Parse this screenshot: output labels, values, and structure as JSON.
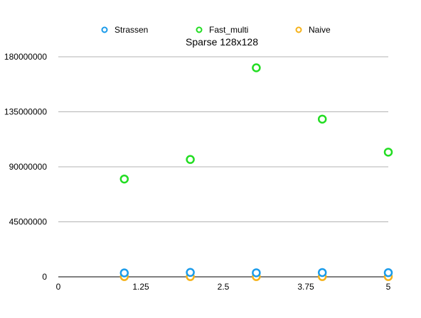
{
  "chart_data": {
    "type": "scatter",
    "title": "Sparse 128x128",
    "xlabel": "",
    "ylabel": "",
    "xlim": [
      0,
      5
    ],
    "ylim": [
      0,
      180000000
    ],
    "x_ticks": [
      "0",
      "1.25",
      "2.5",
      "3.75",
      "5"
    ],
    "y_ticks": [
      "0",
      "45000000",
      "90000000",
      "135000000",
      "180000000"
    ],
    "x_tick_values": [
      0,
      1.25,
      2.5,
      3.75,
      5
    ],
    "y_tick_values": [
      0,
      45000000,
      90000000,
      135000000,
      180000000
    ],
    "grid": "horizontal",
    "legend_position": "top",
    "series": [
      {
        "name": "Strassen",
        "color": "#1a9bea",
        "x": [
          1,
          2,
          3,
          4,
          5
        ],
        "y": [
          3200000,
          3600000,
          3300000,
          3500000,
          3400000
        ]
      },
      {
        "name": "Fast_multi",
        "color": "#22dd22",
        "x": [
          1,
          2,
          3,
          4,
          5
        ],
        "y": [
          80000000,
          96000000,
          171000000,
          129000000,
          102000000
        ]
      },
      {
        "name": "Naive",
        "color": "#f5b21a",
        "x": [
          1,
          2,
          3,
          4,
          5
        ],
        "y": [
          200000,
          200000,
          200000,
          200000,
          200000
        ]
      }
    ]
  }
}
